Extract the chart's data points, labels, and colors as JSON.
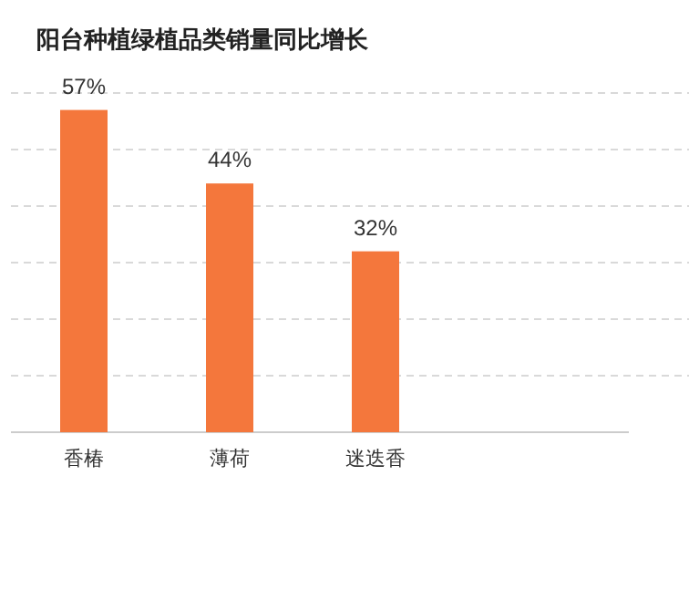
{
  "chart_data": {
    "type": "bar",
    "title": "阳台种植绿植品类销量同比增长",
    "categories": [
      "香椿",
      "薄荷",
      "迷迭香"
    ],
    "values": [
      57,
      44,
      32
    ],
    "value_labels": [
      "57%",
      "44%",
      "32%"
    ],
    "color": "#f4773c",
    "ylim": [
      0,
      60
    ],
    "yticks": [
      {
        "value": 10,
        "label": null
      },
      {
        "value": 20,
        "label": null
      },
      {
        "value": 30,
        "label": null
      },
      {
        "value": 40,
        "label": null
      },
      {
        "value": 50,
        "label": null
      },
      {
        "value": 60,
        "label": null
      }
    ],
    "grid": "y"
  }
}
